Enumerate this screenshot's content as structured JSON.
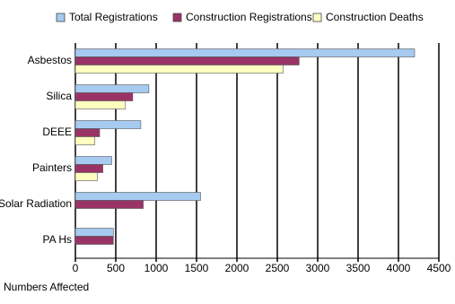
{
  "chart_data": {
    "type": "hbar",
    "categories": [
      "Asbestos",
      "Silica",
      "DEEE",
      "Painters",
      "Solar Radiation",
      "PA Hs"
    ],
    "series": [
      {
        "name": "Total Registrations",
        "color": "#a6caf0",
        "values": [
          4200,
          910,
          810,
          450,
          1550,
          470
        ]
      },
      {
        "name": "Construction Registrations",
        "color": "#993366",
        "values": [
          2770,
          710,
          300,
          340,
          840,
          470
        ]
      },
      {
        "name": "Construction Deaths",
        "color": "#ffffc0",
        "values": [
          2570,
          620,
          240,
          270,
          null,
          null
        ]
      }
    ],
    "xlabel": "Numbers Affected",
    "xlim": [
      0,
      4500
    ],
    "xticks": [
      0,
      500,
      1000,
      1500,
      2000,
      2500,
      3000,
      3500,
      4000,
      4500
    ],
    "grid": true,
    "legend": "top"
  }
}
